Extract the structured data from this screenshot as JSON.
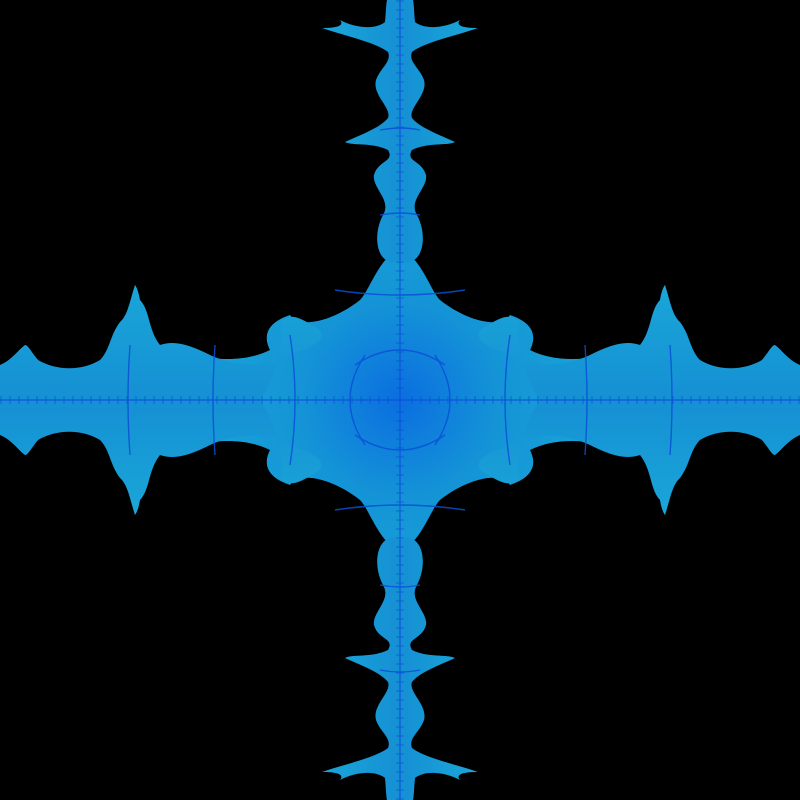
{
  "image": {
    "subject": "fractal-cross",
    "symmetry": "four-fold",
    "colors": {
      "background": "#000000",
      "fill_outer": "#1aa6d8",
      "fill_inner": "#0f8fd0",
      "detail": "#0a4fd8",
      "center_glow": "#0d6fe0"
    }
  }
}
